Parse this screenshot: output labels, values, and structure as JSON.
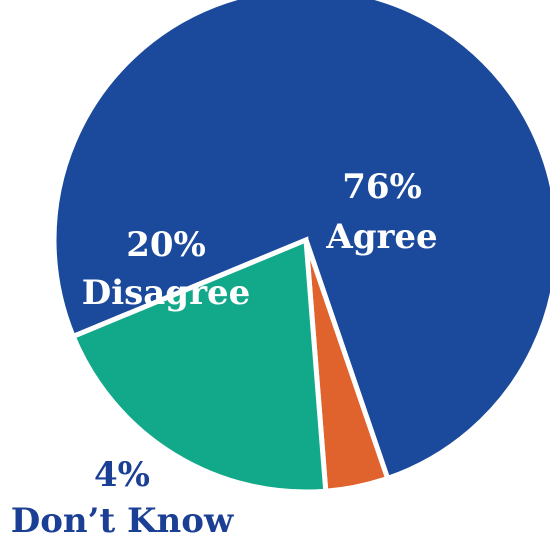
{
  "chart_data": {
    "type": "pie",
    "title": "",
    "slices": [
      {
        "label": "Agree",
        "value": 76,
        "display_value": "76%",
        "color": "#1b4a9c"
      },
      {
        "label": "Don’t Know",
        "value": 4,
        "display_value": "4%",
        "color": "#e0632e"
      },
      {
        "label": "Disagree",
        "value": 20,
        "display_value": "20%",
        "color": "#12a98b"
      }
    ],
    "label_style": {
      "inside_color": "#ffffff",
      "outside_color": "#1b3f95"
    }
  }
}
